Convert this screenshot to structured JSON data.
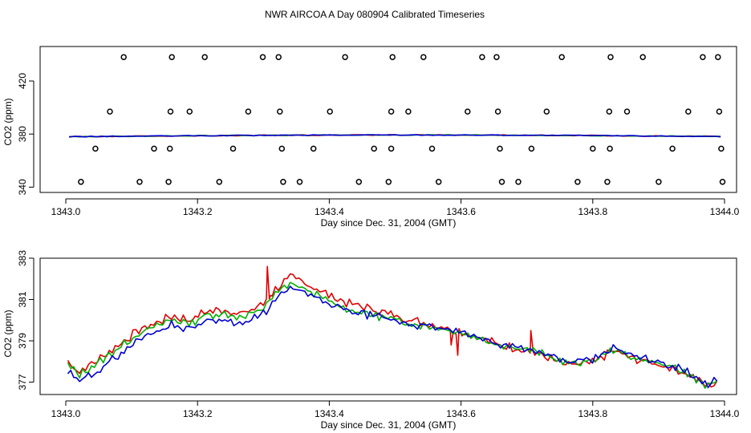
{
  "title": "NWR AIRCOA A  Day 080904  Calibrated Timeseries",
  "colors": {
    "red": "#e00000",
    "green": "#00b000",
    "blue": "#0000d0",
    "axis": "#000000"
  },
  "chart_data": [
    {
      "type": "scatter",
      "xlabel": "Day since Dec. 31, 2004 (GMT)",
      "ylabel": "CO2 (ppm)",
      "xlim": [
        1343.0,
        1344.0
      ],
      "ylim": [
        336,
        446
      ],
      "x_ticks": [
        "1343.0",
        "1343.2",
        "1343.4",
        "1343.6",
        "1343.8",
        "1344.0"
      ],
      "x_tick_values": [
        1343.0,
        1343.2,
        1343.4,
        1343.6,
        1343.8,
        1344.0
      ],
      "y_ticks": [
        "340",
        "380",
        "420"
      ],
      "y_tick_values": [
        340,
        380,
        420
      ],
      "points": [
        [
          1343.088,
          438
        ],
        [
          1343.161,
          438
        ],
        [
          1343.211,
          438
        ],
        [
          1343.299,
          438
        ],
        [
          1343.323,
          438
        ],
        [
          1343.424,
          438
        ],
        [
          1343.496,
          438
        ],
        [
          1343.543,
          438
        ],
        [
          1343.632,
          438
        ],
        [
          1343.654,
          438
        ],
        [
          1343.753,
          438
        ],
        [
          1343.827,
          438
        ],
        [
          1343.876,
          438
        ],
        [
          1343.967,
          438
        ],
        [
          1343.99,
          438
        ],
        [
          1343.067,
          397
        ],
        [
          1343.159,
          397
        ],
        [
          1343.188,
          397
        ],
        [
          1343.277,
          397
        ],
        [
          1343.325,
          397
        ],
        [
          1343.401,
          397
        ],
        [
          1343.494,
          397
        ],
        [
          1343.52,
          397
        ],
        [
          1343.61,
          397
        ],
        [
          1343.656,
          397
        ],
        [
          1343.73,
          397
        ],
        [
          1343.825,
          397
        ],
        [
          1343.852,
          397
        ],
        [
          1343.945,
          397
        ],
        [
          1343.992,
          397
        ],
        [
          1343.045,
          369
        ],
        [
          1343.134,
          369
        ],
        [
          1343.158,
          369
        ],
        [
          1343.254,
          369
        ],
        [
          1343.328,
          369
        ],
        [
          1343.376,
          369
        ],
        [
          1343.468,
          369
        ],
        [
          1343.494,
          369
        ],
        [
          1343.556,
          369
        ],
        [
          1343.659,
          369
        ],
        [
          1343.707,
          369
        ],
        [
          1343.8,
          369
        ],
        [
          1343.826,
          369
        ],
        [
          1343.921,
          369
        ],
        [
          1343.995,
          369
        ],
        [
          1343.023,
          344
        ],
        [
          1343.112,
          344
        ],
        [
          1343.156,
          344
        ],
        [
          1343.233,
          344
        ],
        [
          1343.33,
          344
        ],
        [
          1343.355,
          344
        ],
        [
          1343.445,
          344
        ],
        [
          1343.49,
          344
        ],
        [
          1343.566,
          344
        ],
        [
          1343.662,
          344
        ],
        [
          1343.687,
          344
        ],
        [
          1343.777,
          344
        ],
        [
          1343.822,
          344
        ],
        [
          1343.9,
          344
        ],
        [
          1343.997,
          344
        ]
      ],
      "series": [
        {
          "name": "red",
          "color": "#e00000",
          "x": [
            1343.005,
            1343.994
          ],
          "y": [
            378.0,
            378.2
          ]
        },
        {
          "name": "green",
          "color": "#00b000",
          "x": [
            1343.005,
            1343.994
          ],
          "y": [
            378.0,
            378.2
          ]
        },
        {
          "name": "blue",
          "color": "#0000d0",
          "x": [
            1343.005,
            1343.994
          ],
          "y": [
            378.0,
            378.2
          ]
        }
      ]
    },
    {
      "type": "line",
      "xlabel": "Day since Dec. 31, 2004 (GMT)",
      "ylabel": "CO2 (ppm)",
      "xlim": [
        1343.0,
        1344.0
      ],
      "ylim": [
        376.4,
        383.0
      ],
      "x_ticks": [
        "1343.0",
        "1343.2",
        "1343.4",
        "1343.6",
        "1343.8",
        "1344.0"
      ],
      "x_tick_values": [
        1343.0,
        1343.2,
        1343.4,
        1343.6,
        1343.8,
        1344.0
      ],
      "y_ticks": [
        "377",
        "379",
        "381",
        "383"
      ],
      "y_tick_values": [
        377,
        379,
        381,
        383
      ],
      "anchors": [
        [
          1343.003,
          377.8
        ],
        [
          1343.02,
          377.3
        ],
        [
          1343.05,
          377.9
        ],
        [
          1343.08,
          378.6
        ],
        [
          1343.11,
          379.3
        ],
        [
          1343.14,
          379.7
        ],
        [
          1343.16,
          380.0
        ],
        [
          1343.19,
          379.8
        ],
        [
          1343.21,
          380.2
        ],
        [
          1343.24,
          380.3
        ],
        [
          1343.27,
          380.1
        ],
        [
          1343.3,
          380.6
        ],
        [
          1343.32,
          381.3
        ],
        [
          1343.34,
          381.8
        ],
        [
          1343.37,
          381.4
        ],
        [
          1343.4,
          380.9
        ],
        [
          1343.43,
          380.5
        ],
        [
          1343.46,
          380.3
        ],
        [
          1343.5,
          380.0
        ],
        [
          1343.53,
          379.8
        ],
        [
          1343.57,
          379.6
        ],
        [
          1343.6,
          379.4
        ],
        [
          1343.63,
          379.1
        ],
        [
          1343.66,
          378.8
        ],
        [
          1343.7,
          378.6
        ],
        [
          1343.73,
          378.3
        ],
        [
          1343.76,
          377.9
        ],
        [
          1343.8,
          378.0
        ],
        [
          1343.83,
          378.6
        ],
        [
          1343.86,
          378.2
        ],
        [
          1343.9,
          377.9
        ],
        [
          1343.93,
          377.6
        ],
        [
          1343.95,
          377.3
        ],
        [
          1343.975,
          376.8
        ],
        [
          1343.988,
          377.0
        ]
      ],
      "series": [
        {
          "name": "red",
          "color": "#e00000",
          "offset": [
            [
              1343.08,
              0.2
            ],
            [
              1343.3,
              0.2
            ],
            [
              1343.35,
              0.3
            ],
            [
              1343.45,
              0.3
            ],
            [
              1343.6,
              0.05
            ],
            [
              1343.75,
              -0.1
            ],
            [
              1343.99,
              0
            ]
          ],
          "noise": 0.16,
          "seed": 7,
          "spikes": [
            [
              1343.306,
              382.6
            ],
            [
              1343.311,
              381.2
            ],
            [
              1343.585,
              378.8
            ],
            [
              1343.595,
              378.3
            ],
            [
              1343.706,
              379.5
            ],
            [
              1343.712,
              378.3
            ]
          ]
        },
        {
          "name": "green",
          "color": "#00b000",
          "offset": [
            [
              1343.08,
              0.05
            ],
            [
              1343.3,
              0
            ],
            [
              1343.45,
              0
            ],
            [
              1343.6,
              0
            ],
            [
              1343.99,
              0
            ]
          ],
          "noise": 0.13,
          "seed": 13,
          "spikes": []
        },
        {
          "name": "blue",
          "color": "#0000d0",
          "offset": [
            [
              1343.08,
              -0.3
            ],
            [
              1343.14,
              -0.2
            ],
            [
              1343.3,
              -0.3
            ],
            [
              1343.45,
              -0.05
            ],
            [
              1343.75,
              0.05
            ],
            [
              1343.99,
              0.1
            ]
          ],
          "noise": 0.14,
          "seed": 29,
          "spikes": []
        }
      ]
    }
  ]
}
